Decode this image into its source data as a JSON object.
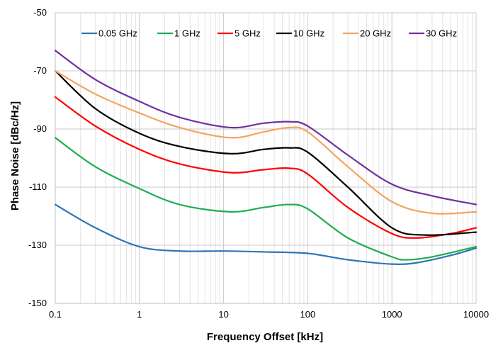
{
  "chart_data": {
    "type": "line",
    "title": "",
    "xlabel": "Frequency Offset [kHz]",
    "ylabel": "Phase Noise [dBc/Hz]",
    "xscale": "log",
    "xlim": [
      0.1,
      10000
    ],
    "ylim": [
      -150,
      -50
    ],
    "x_ticks": [
      0.1,
      1,
      10,
      100,
      1000,
      10000
    ],
    "x_tick_labels": [
      "0.1",
      "1",
      "10",
      "100",
      "1000",
      "10000"
    ],
    "y_ticks": [
      -150,
      -130,
      -110,
      -90,
      -70,
      -50
    ],
    "y_tick_labels": [
      "-150",
      "-130",
      "-110",
      "-90",
      "-70",
      "-50"
    ],
    "grid": "major and minor vertical, major horizontal",
    "legend_position": "top",
    "series": [
      {
        "name": "0.05 GHz",
        "color": "#2E75B6",
        "x": [
          0.1,
          0.3,
          1,
          3,
          10,
          30,
          100,
          300,
          1000,
          2000,
          5000,
          10000
        ],
        "y": [
          -116,
          -124,
          -130.5,
          -132,
          -132,
          -132.3,
          -132.8,
          -135,
          -136.5,
          -136,
          -133.5,
          -131
        ]
      },
      {
        "name": "1 GHz",
        "color": "#1FAD4F",
        "x": [
          0.1,
          0.3,
          1,
          3,
          12,
          30,
          60,
          100,
          300,
          1000,
          1500,
          3000,
          10000
        ],
        "y": [
          -93,
          -103,
          -110.5,
          -116,
          -118.5,
          -117,
          -116,
          -117.5,
          -127.5,
          -134,
          -135,
          -134,
          -130.5
        ]
      },
      {
        "name": "5 GHz",
        "color": "#FF0000",
        "x": [
          0.1,
          0.3,
          1,
          3,
          12,
          30,
          60,
          100,
          300,
          1000,
          2000,
          5000,
          10000
        ],
        "y": [
          -79,
          -89,
          -97,
          -102,
          -105,
          -104,
          -103.5,
          -105.5,
          -117,
          -126,
          -127.5,
          -126,
          -124
        ]
      },
      {
        "name": "10 GHz",
        "color": "#000000",
        "x": [
          0.1,
          0.3,
          1,
          3,
          12,
          30,
          60,
          100,
          300,
          1000,
          2500,
          10000
        ],
        "y": [
          -70,
          -83,
          -91.5,
          -96,
          -98.5,
          -97,
          -96.5,
          -98,
          -110,
          -124,
          -126.5,
          -125.5
        ]
      },
      {
        "name": "20 GHz",
        "color": "#F4A460",
        "x": [
          0.1,
          0.3,
          1,
          3,
          12,
          30,
          60,
          100,
          300,
          1000,
          3000,
          10000
        ],
        "y": [
          -70,
          -78,
          -84.5,
          -89.5,
          -93,
          -91,
          -89.5,
          -91,
          -103,
          -115,
          -119,
          -118.5
        ]
      },
      {
        "name": "30 GHz",
        "color": "#7030A0",
        "x": [
          0.1,
          0.3,
          1,
          3,
          12,
          30,
          60,
          100,
          300,
          1000,
          3000,
          10000
        ],
        "y": [
          -63,
          -73,
          -80.5,
          -86,
          -89.5,
          -88,
          -87.5,
          -89,
          -99,
          -109,
          -113,
          -116
        ]
      }
    ]
  }
}
